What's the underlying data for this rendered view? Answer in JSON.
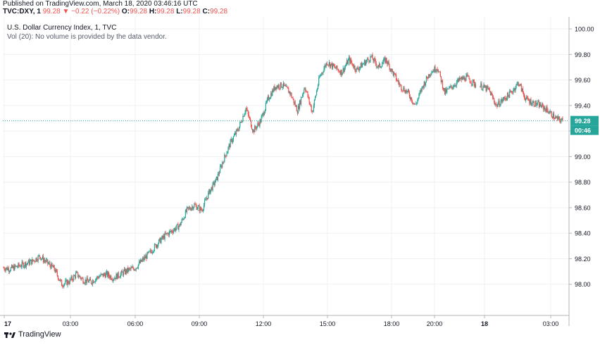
{
  "header": {
    "published": "Published on TradingView.com, March 18, 2020 03:46:16 UTC",
    "symbol": "TVC:DXY, 1",
    "last": "99.28",
    "change": "−0.22 (−0.22%)",
    "o_label": "O:",
    "o_value": "99.28",
    "h_label": "H:",
    "h_value": "99.28",
    "l_label": "L:",
    "l_value": "99.28",
    "c_label": "C:",
    "c_value": "99.28"
  },
  "legend": {
    "title": "U.S. Dollar Currency Index, 1, TVC",
    "volume_note": "Vol (20): No volume is provided by the data vendor."
  },
  "footer": {
    "brand": "TradingView"
  },
  "colors": {
    "up": "#26a69a",
    "down": "#ef5350",
    "price_line": "#26a69a",
    "grid": "#eef0f3",
    "axis_text": "#131722"
  },
  "chart_data": {
    "type": "line",
    "title": "U.S. Dollar Currency Index, 1, TVC",
    "ylim": [
      97.8,
      100.05
    ],
    "y_ticks": [
      "100.00",
      "99.80",
      "99.60",
      "99.40",
      "99.20",
      "99.00",
      "98.80",
      "98.60",
      "98.40",
      "98.20",
      "98.00"
    ],
    "x_ticks": [
      "17",
      "03:00",
      "06:00",
      "09:00",
      "12:00",
      "15:00",
      "18:00",
      "20:00",
      "18",
      "03:00"
    ],
    "last_price_label": "99.28",
    "countdown_label": "00:46",
    "current_price": 99.28,
    "series": [
      {
        "values": [
          98.13,
          98.12,
          98.14,
          98.16,
          98.18,
          98.22,
          98.17,
          98.12,
          98.0,
          98.02,
          98.08,
          98.03,
          98.02,
          98.06,
          98.08,
          98.05,
          98.08,
          98.11,
          98.13,
          98.19,
          98.25,
          98.32,
          98.38,
          98.42,
          98.46,
          98.58,
          98.62,
          98.58,
          98.72,
          98.82,
          98.98,
          99.12,
          99.22,
          99.38,
          99.2,
          99.28,
          99.45,
          99.55,
          99.56,
          99.5,
          99.36,
          99.55,
          99.35,
          99.62,
          99.74,
          99.7,
          99.66,
          99.76,
          99.68,
          99.73,
          99.78,
          99.7,
          99.76,
          99.65,
          99.55,
          99.5,
          99.4,
          99.55,
          99.66,
          99.7,
          99.5,
          99.55,
          99.6,
          99.62,
          99.57,
          99.55,
          99.52,
          99.4,
          99.45,
          99.5,
          99.58,
          99.45,
          99.42,
          99.4,
          99.36,
          99.3,
          99.28
        ]
      }
    ]
  }
}
